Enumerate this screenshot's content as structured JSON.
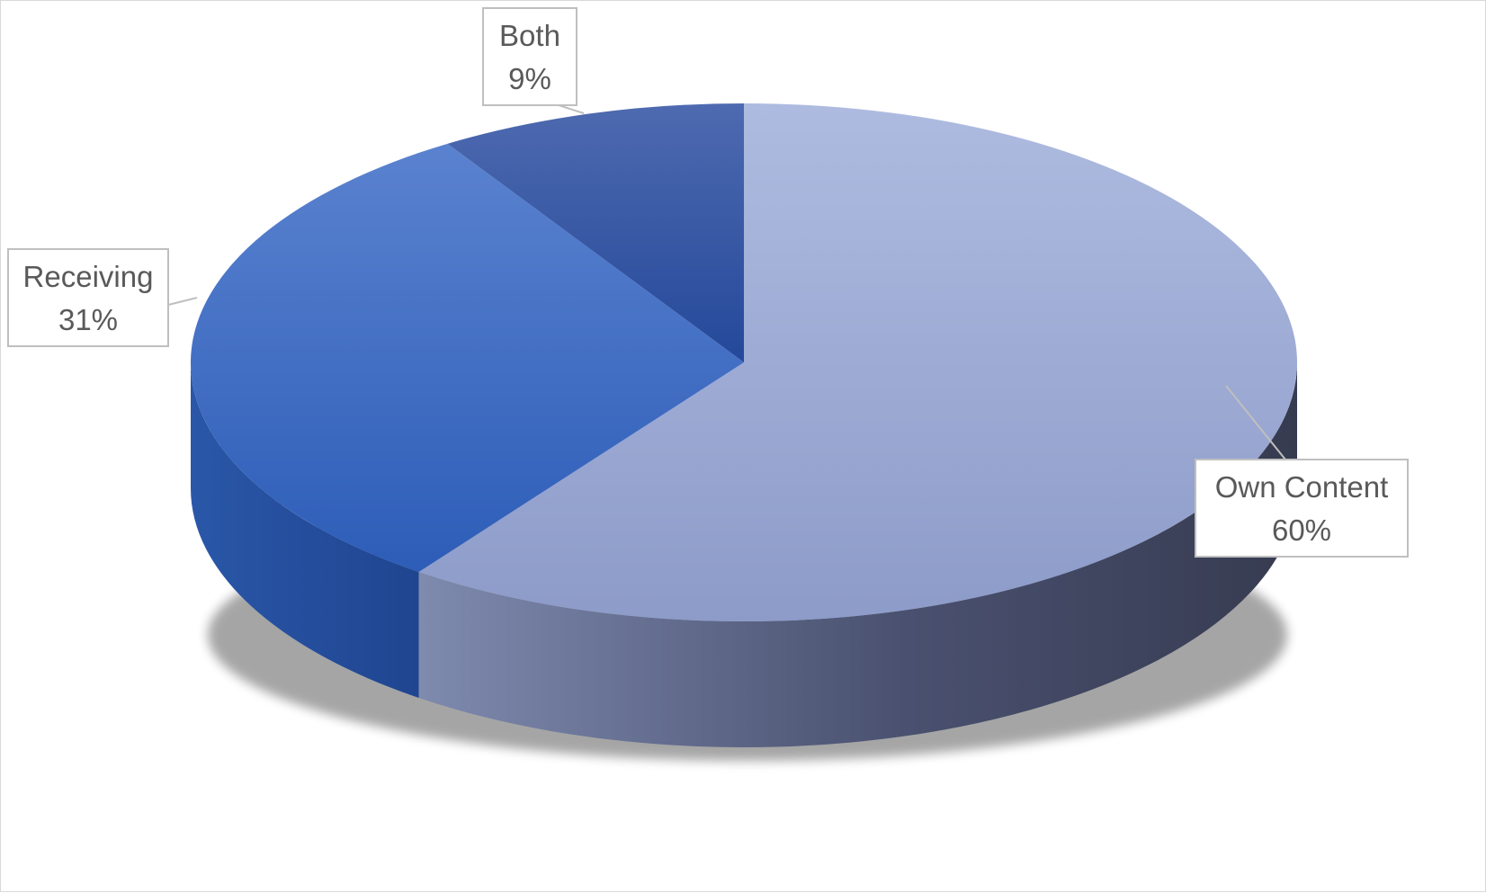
{
  "chart_data": {
    "type": "pie",
    "style": "3d",
    "categories": [
      "Own Content",
      "Receiving",
      "Both"
    ],
    "values": [
      60,
      31,
      9
    ],
    "value_labels": [
      "60%",
      "31%",
      "9%"
    ],
    "colors": [
      "#9AA8D6",
      "#3F6FC8",
      "#2F56A0"
    ],
    "legend": "none",
    "title": ""
  }
}
